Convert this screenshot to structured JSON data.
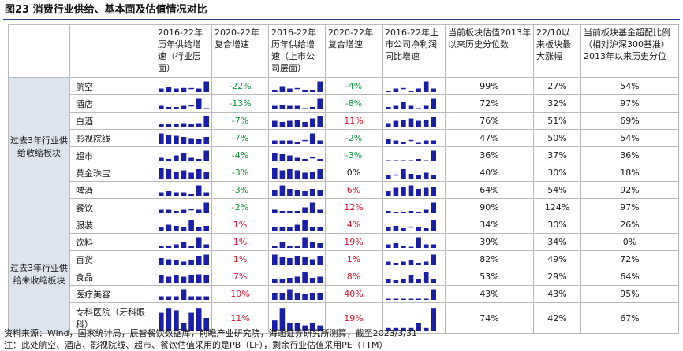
{
  "title": "图23 消费行业供给、基本面及估值情况对比",
  "colors": {
    "red": "#e0142b",
    "green": "#0f9a3b",
    "bar": "#1a1fa8",
    "group_bg": "#dde4ee",
    "title_line": "#1f3f8f"
  },
  "headers": [
    "",
    "",
    "2016-22年历年供给增速（行业层面）",
    "2020-22年复合增速",
    "2016-22年历年供给增速（上市公司层面）",
    "2020-22年复合增速",
    "2016-22年上市公司净利润同比增速",
    "当前板块估值2013年以来历史分位数",
    "22/10以来板块最大涨幅",
    "当前板块基金超配比例（相对沪深300基准）2013年以来历史分位"
  ],
  "groups": [
    {
      "label": "过去3年行业供给收缩板块",
      "rows": [
        {
          "sector": "航空",
          "industry_cagr": "-22%",
          "industry_color": "green",
          "listed_cagr": "-4%",
          "listed_color": "green",
          "valuation_pct": "99%",
          "max_gain": "27%",
          "fund_pct": "54%",
          "spark1": [
            0.3,
            0.4,
            0.3,
            0.35,
            -0.1,
            0.3,
            0.9
          ],
          "spark2": [
            0.2,
            0.5,
            0.3,
            -0.2,
            0.2,
            0.2,
            0.9
          ],
          "spark3": [
            0.1,
            0.3,
            -0.1,
            0.1,
            0.3,
            0.9,
            0.3
          ]
        },
        {
          "sector": "酒店",
          "industry_cagr": "-13%",
          "industry_color": "green",
          "listed_cagr": "-8%",
          "listed_color": "green",
          "valuation_pct": "72%",
          "max_gain": "32%",
          "fund_pct": "97%",
          "spark1": [
            0.3,
            0.2,
            0.2,
            0.3,
            -0.1,
            0.9,
            0.1
          ],
          "spark2": [
            0.3,
            0.4,
            0.3,
            0.3,
            0.1,
            0.2,
            0.9
          ],
          "spark3": [
            0.2,
            0.3,
            0.6,
            0.3,
            0.1,
            0.3,
            0.9
          ]
        },
        {
          "sector": "白酒",
          "industry_cagr": "-7%",
          "industry_color": "green",
          "listed_cagr": "11%",
          "listed_color": "red",
          "valuation_pct": "76%",
          "max_gain": "51%",
          "fund_pct": "69%",
          "spark1": [
            0.2,
            0.25,
            0.2,
            0.3,
            0.2,
            0.3,
            0.9
          ],
          "spark2": [
            0.5,
            0.4,
            0.5,
            0.6,
            0.4,
            0.7,
            0.9
          ],
          "spark3": [
            0.3,
            0.5,
            0.6,
            0.7,
            0.5,
            0.6,
            0.8
          ]
        },
        {
          "sector": "影视院线",
          "industry_cagr": "-7%",
          "industry_color": "green",
          "listed_cagr": "-2%",
          "listed_color": "green",
          "valuation_pct": "47%",
          "max_gain": "50%",
          "fund_pct": "54%",
          "spark1": [
            0.9,
            0.8,
            0.7,
            0.6,
            0.5,
            0.4,
            0.6
          ],
          "spark2": [
            0.3,
            0.3,
            0.3,
            0.2,
            -0.1,
            0.9,
            0.3
          ],
          "spark3": [
            0.4,
            0.3,
            0.2,
            -0.1,
            0.1,
            0.3,
            0.3
          ]
        },
        {
          "sector": "超市",
          "industry_cagr": "-4%",
          "industry_color": "green",
          "listed_cagr": "-3%",
          "listed_color": "green",
          "valuation_pct": "36%",
          "max_gain": "37%",
          "fund_pct": "36%",
          "spark1": [
            0.3,
            0.2,
            0.5,
            0.7,
            0.3,
            0.2,
            0.9
          ],
          "spark2": [
            0.7,
            0.6,
            0.5,
            0.3,
            0.2,
            -0.1,
            0.2
          ],
          "spark3": [
            0.1,
            0.1,
            0.1,
            0.1,
            0.2,
            0.1,
            0.9
          ]
        },
        {
          "sector": "黄金珠宝",
          "industry_cagr": "-3%",
          "industry_color": "green",
          "listed_cagr": "0%",
          "listed_color": "black",
          "valuation_pct": "40%",
          "max_gain": "30%",
          "fund_pct": "18%",
          "spark1": [
            0.9,
            0.8,
            0.6,
            0.7,
            0.5,
            0.8,
            0.6
          ],
          "spark2": [
            0.9,
            0.7,
            0.8,
            0.7,
            0.5,
            0.6,
            0.8
          ],
          "spark3": [
            0.3,
            -0.1,
            0.8,
            0.4,
            0.3,
            0.5,
            0.3
          ]
        },
        {
          "sector": "啤酒",
          "industry_cagr": "-3%",
          "industry_color": "green",
          "listed_cagr": "6%",
          "listed_color": "red",
          "valuation_pct": "64%",
          "max_gain": "54%",
          "fund_pct": "92%",
          "spark1": [
            0.3,
            0.4,
            0.3,
            0.3,
            0.2,
            0.9,
            0.3
          ],
          "spark2": [
            0.5,
            0.9,
            0.6,
            0.5,
            0.4,
            0.6,
            0.5
          ],
          "spark3": [
            0.4,
            0.7,
            0.8,
            0.9,
            0.6,
            0.7,
            0.8
          ]
        },
        {
          "sector": "餐饮",
          "industry_cagr": "-2%",
          "industry_color": "green",
          "listed_cagr": "12%",
          "listed_color": "red",
          "valuation_pct": "90%",
          "max_gain": "124%",
          "fund_pct": "97%",
          "spark1": [
            0.3,
            0.3,
            0.2,
            0.3,
            -0.1,
            0.3,
            0.9
          ],
          "spark2": [
            0.3,
            0.2,
            0.2,
            0.2,
            0.5,
            0.9,
            0.3
          ],
          "spark3": [
            0.2,
            0.1,
            0.1,
            0.2,
            0.1,
            0.3,
            0.9
          ]
        }
      ]
    },
    {
      "label": "过去3年行业供给未收缩板块",
      "rows": [
        {
          "sector": "服装",
          "industry_cagr": "1%",
          "industry_color": "red",
          "listed_cagr": "4%",
          "listed_color": "red",
          "valuation_pct": "34%",
          "max_gain": "30%",
          "fund_pct": "26%",
          "spark1": [
            0.3,
            0.5,
            0.4,
            0.3,
            0.9,
            0.3,
            0.4
          ],
          "spark2": [
            0.3,
            0.3,
            0.3,
            0.5,
            0.9,
            0.3,
            0.3
          ],
          "spark3": [
            0.3,
            0.4,
            0.2,
            -0.1,
            0.3,
            0.2,
            0.9
          ]
        },
        {
          "sector": "饮料",
          "industry_cagr": "1%",
          "industry_color": "red",
          "listed_cagr": "19%",
          "listed_color": "red",
          "valuation_pct": "39%",
          "max_gain": "34%",
          "fund_pct": "0%",
          "spark1": [
            0.2,
            0.2,
            0.3,
            0.5,
            0.2,
            0.9,
            0.3
          ],
          "spark2": [
            0.2,
            0.5,
            0.2,
            0.2,
            0.9,
            0.5,
            0.4
          ],
          "spark3": [
            0.3,
            0.4,
            0.2,
            0.1,
            0.9,
            0.3,
            0.3
          ]
        },
        {
          "sector": "百货",
          "industry_cagr": "1%",
          "industry_color": "red",
          "listed_cagr": "1%",
          "listed_color": "red",
          "valuation_pct": "82%",
          "max_gain": "49%",
          "fund_pct": "72%",
          "spark1": [
            0.6,
            0.5,
            0.4,
            0.3,
            0.4,
            0.8,
            0.9
          ],
          "spark2": [
            0.9,
            0.7,
            0.6,
            0.8,
            0.7,
            0.5,
            0.8
          ],
          "spark3": [
            0.3,
            0.2,
            0.3,
            0.4,
            0.2,
            0.3,
            0.9
          ]
        },
        {
          "sector": "食品",
          "industry_cagr": "7%",
          "industry_color": "red",
          "listed_cagr": "8%",
          "listed_color": "red",
          "valuation_pct": "53%",
          "max_gain": "29%",
          "fund_pct": "64%",
          "spark1": [
            0.6,
            0.5,
            0.6,
            0.5,
            0.6,
            0.7,
            0.6
          ],
          "spark2": [
            0.3,
            0.3,
            0.4,
            0.5,
            0.9,
            0.4,
            0.5
          ],
          "spark3": [
            0.3,
            0.2,
            0.3,
            0.6,
            0.3,
            0.9,
            0.3
          ]
        },
        {
          "sector": "医疗美容",
          "industry_cagr": "10%",
          "industry_color": "red",
          "listed_cagr": "40%",
          "listed_color": "red",
          "valuation_pct": "43%",
          "max_gain": "43%",
          "fund_pct": "95%",
          "spark1": [
            0.3,
            0.3,
            0.3,
            0.9,
            0.3,
            0.3,
            0.3
          ],
          "spark2": [
            0.6,
            0.6,
            0.9,
            0.6,
            0.5,
            0.6,
            0.6
          ],
          "spark3": [
            0.1,
            0.1,
            0.1,
            0.1,
            0.1,
            0.1,
            0.9
          ]
        },
        {
          "sector": "专科医院（牙科眼科）",
          "industry_cagr": "11%",
          "industry_color": "red",
          "listed_cagr": "19%",
          "listed_color": "red",
          "valuation_pct": "74%",
          "max_gain": "42%",
          "fund_pct": "67%",
          "spark1": [
            0.7,
            0.9,
            0.8,
            0.3,
            0.7,
            0.9,
            0.5
          ],
          "spark2": [
            0.4,
            0.9,
            0.3,
            0.3,
            0.2,
            0.3,
            0.2
          ],
          "spark3": [
            0.1,
            0.1,
            0.1,
            0.1,
            0.3,
            0.1,
            0.9
          ]
        }
      ]
    }
  ],
  "footer": [
    "资料来源：Wind，国家统计局，辰智餐饮数据库，前瞻产业研究院，海通证券研究所测算，截至2023/3/31",
    "注：此处航空、酒店、影视院线、超市、餐饮估值采用的是PB（LF），剩余行业估值采用PE（TTM）"
  ]
}
